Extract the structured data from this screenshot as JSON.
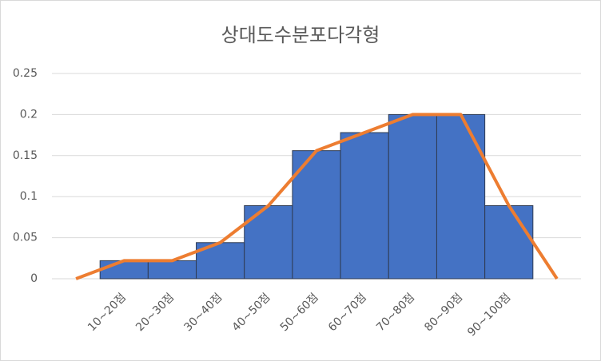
{
  "chart_data": {
    "type": "bar",
    "title": "상대도수분포다각형",
    "categories": [
      null,
      "10~20점",
      "20~30점",
      "30~40점",
      "40~50점",
      "50~60점",
      "60~70점",
      "70~80점",
      "80~90점",
      "90~100점",
      null
    ],
    "series": [
      {
        "type": "bar",
        "color": "#4472c4",
        "values": [
          null,
          0.022,
          0.022,
          0.044,
          0.089,
          0.156,
          0.178,
          0.2,
          0.2,
          0.089,
          null
        ]
      },
      {
        "type": "line",
        "color": "#ed7d31",
        "values": [
          0,
          0.022,
          0.022,
          0.044,
          0.089,
          0.156,
          0.178,
          0.2,
          0.2,
          0.089,
          0
        ]
      }
    ],
    "ylim": [
      0,
      0.25
    ],
    "yticks": [
      0,
      0.05,
      0.1,
      0.15,
      0.2,
      0.25
    ],
    "grid": true
  }
}
